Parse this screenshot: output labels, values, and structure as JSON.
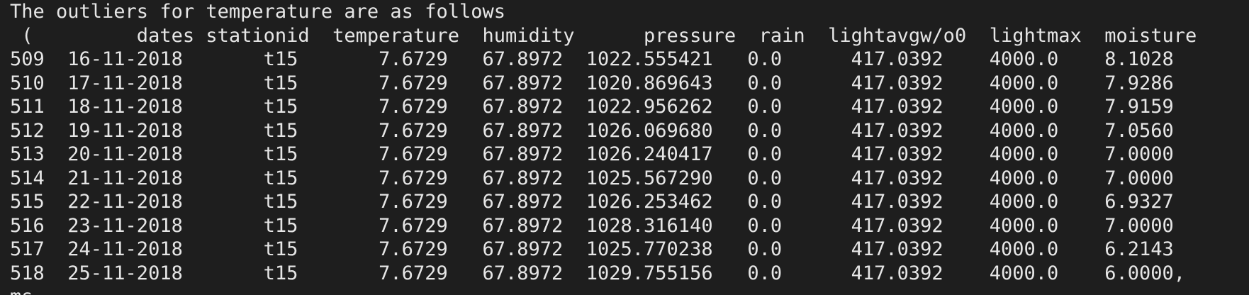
{
  "terminal": {
    "title_line": "The outliers for temperature are as follows",
    "header_line": " (         dates stationid  temperature  humidity      pressure  rain  lightavgw/o0  lightmax  moisture",
    "rows": [
      "509  16-11-2018       t15       7.6729   67.8972  1022.555421   0.0      417.0392    4000.0    8.1028",
      "510  17-11-2018       t15       7.6729   67.8972  1020.869643   0.0      417.0392    4000.0    7.9286",
      "511  18-11-2018       t15       7.6729   67.8972  1022.956262   0.0      417.0392    4000.0    7.9159",
      "512  19-11-2018       t15       7.6729   67.8972  1026.069680   0.0      417.0392    4000.0    7.0560",
      "513  20-11-2018       t15       7.6729   67.8972  1026.240417   0.0      417.0392    4000.0    7.0000",
      "514  21-11-2018       t15       7.6729   67.8972  1025.567290   0.0      417.0392    4000.0    7.0000",
      "515  22-11-2018       t15       7.6729   67.8972  1026.253462   0.0      417.0392    4000.0    6.9327",
      "516  23-11-2018       t15       7.6729   67.8972  1028.316140   0.0      417.0392    4000.0    7.0000",
      "517  24-11-2018       t15       7.6729   67.8972  1025.770238   0.0      417.0392    4000.0    6.2143",
      "518  25-11-2018       t15       7.6729   67.8972  1029.755156   0.0      417.0392    4000.0    6.0000,"
    ],
    "trailing_line": "ms"
  }
}
